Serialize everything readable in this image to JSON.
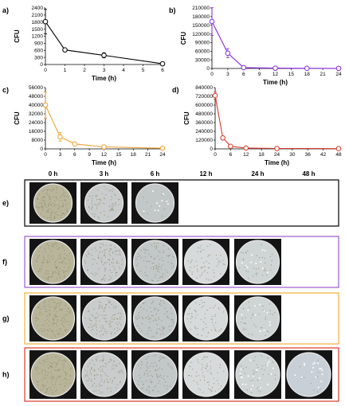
{
  "chart_data": [
    {
      "type": "line",
      "panel_label": "a)",
      "color": "#000000",
      "xlabel": "Time (h)",
      "ylabel": "CFU",
      "xlim": [
        0,
        6
      ],
      "ylim": [
        0,
        2400
      ],
      "xticks": [
        0,
        1,
        2,
        3,
        4,
        5,
        6
      ],
      "yticks": [
        0,
        300,
        600,
        900,
        1200,
        1500,
        1800,
        2100,
        2400
      ],
      "series": [
        {
          "x": [
            0,
            1,
            3,
            6
          ],
          "y": [
            1820,
            620,
            390,
            30
          ],
          "err": [
            520,
            0,
            110,
            40
          ]
        }
      ]
    },
    {
      "type": "line",
      "panel_label": "b)",
      "color": "#8a2be2",
      "xlabel": "Time (h)",
      "ylabel": "CFU",
      "xlim": [
        0,
        24
      ],
      "ylim": [
        0,
        210000
      ],
      "xticks": [
        0,
        3,
        6,
        9,
        12,
        15,
        18,
        21,
        24
      ],
      "yticks": [
        0,
        30000,
        60000,
        90000,
        120000,
        150000,
        180000,
        210000
      ],
      "series": [
        {
          "x": [
            0,
            3,
            6,
            12,
            18,
            24
          ],
          "y": [
            163000,
            53000,
            3000,
            1000,
            500,
            300
          ],
          "err": [
            48000,
            16000,
            2000,
            0,
            0,
            0
          ]
        }
      ]
    },
    {
      "type": "line",
      "panel_label": "c)",
      "color": "#f0a030",
      "xlabel": "Time (h)",
      "ylabel": "CFU",
      "xlim": [
        0,
        24
      ],
      "ylim": [
        0,
        56000
      ],
      "xticks": [
        0,
        3,
        6,
        9,
        12,
        15,
        18,
        21,
        24
      ],
      "yticks": [
        0,
        8000,
        16000,
        24000,
        32000,
        40000,
        48000,
        56000
      ],
      "series": [
        {
          "x": [
            0,
            3,
            6,
            12,
            24
          ],
          "y": [
            40000,
            11000,
            4500,
            1800,
            600
          ],
          "err": [
            12000,
            4000,
            1500,
            800,
            0
          ]
        }
      ]
    },
    {
      "type": "line",
      "panel_label": "d)",
      "color": "#d83a2a",
      "xlabel": "Time (h)",
      "ylabel": "CFU",
      "xlim": [
        0,
        48
      ],
      "ylim": [
        0,
        840000
      ],
      "xticks": [
        0,
        6,
        12,
        18,
        24,
        30,
        36,
        42,
        48
      ],
      "yticks": [
        0,
        120000,
        240000,
        360000,
        480000,
        600000,
        720000,
        840000
      ],
      "series": [
        {
          "x": [
            0,
            3,
            6,
            12,
            24,
            48
          ],
          "y": [
            730000,
            150000,
            35000,
            12000,
            5000,
            3000
          ],
          "err": [
            50000,
            20000,
            0,
            0,
            0,
            0
          ]
        }
      ]
    }
  ],
  "plates": {
    "column_headers": [
      "0 h",
      "3 h",
      "6 h",
      "12 h",
      "24 h",
      "48 h"
    ],
    "rows": [
      {
        "label": "e)",
        "color": "#000000",
        "count": 3
      },
      {
        "label": "f)",
        "color": "#9b59d0",
        "count": 5
      },
      {
        "label": "g)",
        "color": "#f0b040",
        "count": 5
      },
      {
        "label": "h)",
        "color": "#d83a2a",
        "count": 6
      }
    ]
  }
}
